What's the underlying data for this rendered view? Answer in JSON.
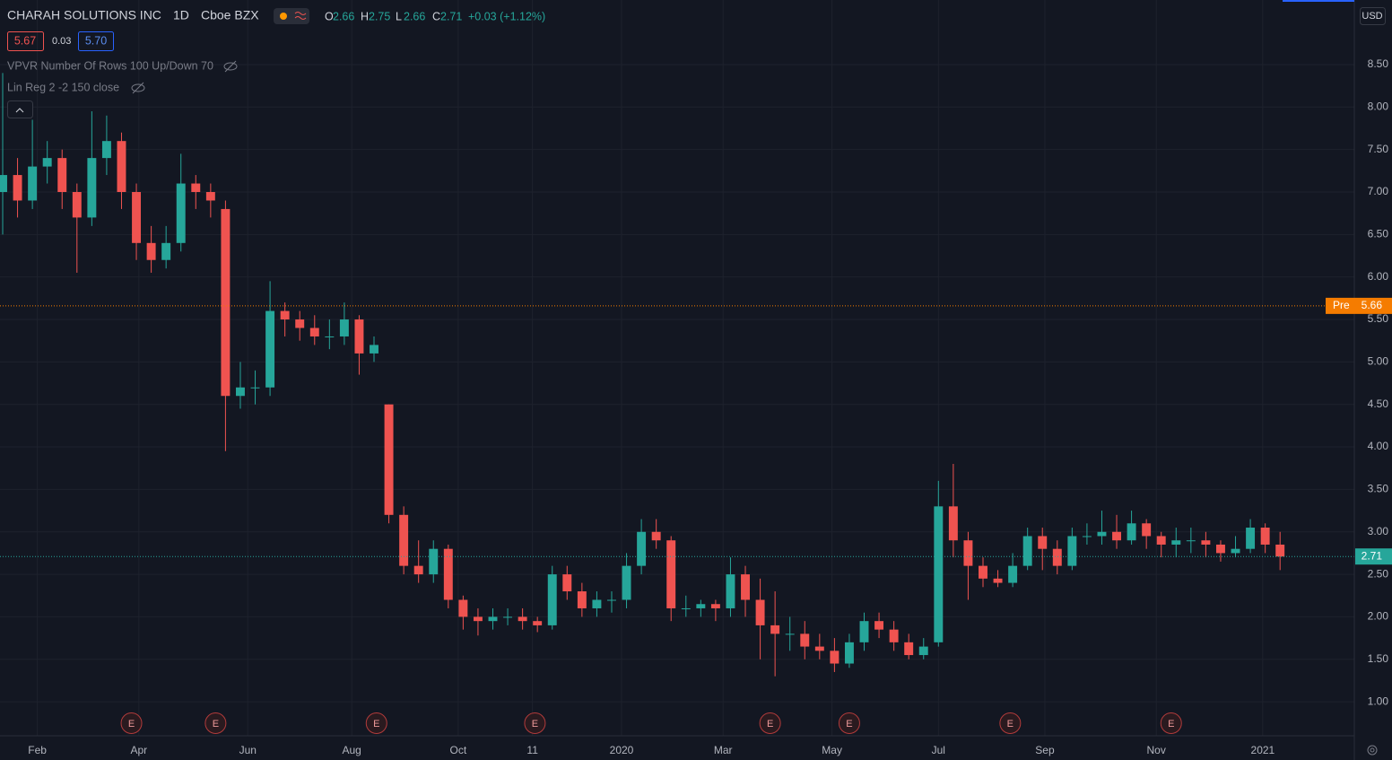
{
  "header": {
    "symbol": "CHARAH SOLUTIONS INC",
    "interval": "1D",
    "exchange": "Cboe BZX",
    "o_label": "O",
    "o": "2.66",
    "h_label": "H",
    "h": "2.75",
    "l_label": "L",
    "l": "2.66",
    "c_label": "C",
    "c": "2.71",
    "change": "+0.03 (+1.12%)",
    "bid": "5.67",
    "spread": "0.03",
    "ask": "5.70",
    "indicator_1": "VPVR Number Of Rows 100 Up/Down 70",
    "indicator_2": "Lin Reg 2 -2 150 close",
    "currency": "USD"
  },
  "chart_data": {
    "type": "candlestick",
    "up_color": "#26a69a",
    "down_color": "#ef5350",
    "x": [
      0,
      6,
      12,
      18,
      24,
      30,
      36,
      42,
      48,
      54,
      60,
      66,
      72,
      78,
      84,
      90,
      96,
      102,
      108,
      114,
      120,
      126,
      132,
      138,
      144,
      150,
      156,
      162,
      168,
      174,
      180,
      186,
      192,
      198,
      204,
      210,
      216,
      222,
      228,
      234,
      240,
      246,
      252,
      258,
      264,
      270,
      276,
      282,
      288,
      294,
      300,
      306,
      312,
      318,
      324,
      330,
      336,
      342,
      348,
      354,
      360,
      366,
      372,
      378,
      384,
      390,
      396,
      402,
      408,
      414,
      420,
      426,
      432,
      438,
      444,
      450,
      456,
      462,
      468,
      474,
      480,
      486,
      492,
      498,
      504,
      510,
      516
    ],
    "open": [
      7.0,
      7.2,
      6.9,
      7.3,
      7.4,
      7.0,
      6.7,
      7.4,
      7.6,
      7.0,
      6.4,
      6.2,
      6.4,
      7.1,
      7.0,
      6.8,
      4.6,
      4.7,
      4.7,
      5.6,
      5.5,
      5.4,
      5.3,
      5.3,
      5.5,
      5.1,
      4.5,
      3.2,
      2.6,
      2.5,
      2.8,
      2.2,
      2.0,
      1.95,
      2.0,
      2.0,
      1.95,
      1.9,
      2.5,
      2.3,
      2.1,
      2.2,
      2.2,
      2.6,
      3.0,
      2.9,
      2.1,
      2.1,
      2.15,
      2.1,
      2.5,
      2.2,
      1.9,
      1.8,
      1.8,
      1.65,
      1.6,
      1.45,
      1.7,
      1.95,
      1.85,
      1.7,
      1.55,
      1.7,
      3.3,
      2.9,
      2.6,
      2.45,
      2.4,
      2.6,
      2.95,
      2.8,
      2.6,
      2.95,
      2.95,
      3.0,
      2.9,
      3.1,
      2.95,
      2.85,
      2.9,
      2.9,
      2.85,
      2.75,
      2.8,
      3.05,
      2.85
    ],
    "high": [
      8.4,
      7.4,
      7.85,
      7.6,
      7.5,
      7.1,
      7.95,
      7.9,
      7.7,
      7.1,
      6.6,
      6.6,
      7.45,
      7.2,
      7.1,
      6.9,
      5.0,
      4.9,
      5.95,
      5.7,
      5.6,
      5.55,
      5.5,
      5.7,
      5.55,
      5.3,
      4.5,
      3.3,
      2.9,
      2.9,
      2.85,
      2.25,
      2.1,
      2.1,
      2.1,
      2.1,
      2.0,
      2.6,
      2.6,
      2.4,
      2.3,
      2.3,
      2.75,
      3.15,
      3.15,
      2.95,
      2.25,
      2.2,
      2.2,
      2.7,
      2.6,
      2.45,
      2.3,
      2.0,
      1.95,
      1.8,
      1.75,
      1.8,
      2.05,
      2.05,
      1.95,
      1.8,
      1.75,
      3.6,
      3.8,
      3.0,
      2.7,
      2.55,
      2.75,
      3.05,
      3.05,
      2.9,
      3.05,
      3.1,
      3.25,
      3.2,
      3.25,
      3.15,
      3.0,
      3.05,
      3.05,
      3.0,
      2.9,
      2.95,
      3.15,
      3.1,
      3.0
    ],
    "low": [
      6.5,
      6.7,
      6.8,
      7.1,
      6.8,
      6.05,
      6.6,
      7.2,
      6.8,
      6.2,
      6.05,
      6.1,
      6.3,
      6.8,
      6.7,
      3.95,
      4.45,
      4.5,
      4.6,
      5.3,
      5.25,
      5.2,
      5.15,
      5.2,
      4.85,
      5.0,
      3.1,
      2.5,
      2.4,
      2.4,
      2.1,
      1.85,
      1.78,
      1.85,
      1.9,
      1.85,
      1.82,
      1.85,
      2.2,
      2.0,
      2.0,
      2.05,
      2.1,
      2.5,
      2.8,
      1.95,
      2.0,
      2.0,
      1.95,
      2.0,
      2.0,
      1.5,
      1.3,
      1.6,
      1.5,
      1.5,
      1.35,
      1.4,
      1.6,
      1.75,
      1.6,
      1.5,
      1.5,
      1.65,
      2.7,
      2.2,
      2.35,
      2.35,
      2.35,
      2.55,
      2.55,
      2.5,
      2.55,
      2.85,
      2.85,
      2.8,
      2.85,
      2.8,
      2.7,
      2.7,
      2.75,
      2.7,
      2.65,
      2.7,
      2.75,
      2.75,
      2.55
    ],
    "close": [
      7.2,
      6.9,
      7.3,
      7.4,
      7.0,
      6.7,
      7.4,
      7.6,
      7.0,
      6.4,
      6.2,
      6.4,
      7.1,
      7.0,
      6.9,
      4.6,
      4.7,
      4.7,
      5.6,
      5.5,
      5.4,
      5.3,
      5.3,
      5.5,
      5.1,
      5.2,
      3.2,
      2.6,
      2.5,
      2.8,
      2.2,
      2.0,
      1.95,
      2.0,
      2.0,
      1.95,
      1.9,
      2.5,
      2.3,
      2.1,
      2.2,
      2.2,
      2.6,
      3.0,
      2.9,
      2.1,
      2.1,
      2.15,
      2.1,
      2.5,
      2.2,
      1.9,
      1.8,
      1.8,
      1.65,
      1.6,
      1.45,
      1.7,
      1.95,
      1.85,
      1.7,
      1.55,
      1.65,
      3.3,
      2.9,
      2.6,
      2.45,
      2.4,
      2.6,
      2.95,
      2.8,
      2.6,
      2.95,
      2.95,
      3.0,
      2.9,
      3.1,
      2.95,
      2.85,
      2.9,
      2.9,
      2.85,
      2.75,
      2.8,
      3.05,
      2.85,
      2.71
    ],
    "xlim": [
      0,
      546
    ],
    "xticks": [
      {
        "value": 14,
        "label": "Feb"
      },
      {
        "value": 55,
        "label": "Apr"
      },
      {
        "value": 99,
        "label": "Jun"
      },
      {
        "value": 141,
        "label": "Aug"
      },
      {
        "value": 184,
        "label": "Oct"
      },
      {
        "value": 214,
        "label": "11"
      },
      {
        "value": 250,
        "label": "2020"
      },
      {
        "value": 291,
        "label": "Mar"
      },
      {
        "value": 335,
        "label": "May"
      },
      {
        "value": 378,
        "label": "Jul"
      },
      {
        "value": 421,
        "label": "Sep"
      },
      {
        "value": 466,
        "label": "Nov"
      },
      {
        "value": 509,
        "label": "2021"
      }
    ],
    "ylim": [
      0.6,
      9.26
    ],
    "yticks": [
      {
        "value": 1,
        "label": "1.00"
      },
      {
        "value": 1.5,
        "label": "1.50"
      },
      {
        "value": 2,
        "label": "2.00"
      },
      {
        "value": 2.5,
        "label": "2.50"
      },
      {
        "value": 3,
        "label": "3.00"
      },
      {
        "value": 3.5,
        "label": "3.50"
      },
      {
        "value": 4,
        "label": "4.00"
      },
      {
        "value": 4.5,
        "label": "4.50"
      },
      {
        "value": 5,
        "label": "5.00"
      },
      {
        "value": 5.5,
        "label": "5.50"
      },
      {
        "value": 6,
        "label": "6.00"
      },
      {
        "value": 6.5,
        "label": "6.50"
      },
      {
        "value": 7,
        "label": "7.00"
      },
      {
        "value": 7.5,
        "label": "7.50"
      },
      {
        "value": 8,
        "label": "8.00"
      },
      {
        "value": 8.5,
        "label": "8.50"
      }
    ],
    "grid": true,
    "pre_market": {
      "label": "Pre",
      "value": 5.66,
      "color": "#f57c00"
    },
    "last_price": {
      "value": 2.71,
      "color": "#26a69a"
    },
    "earnings": {
      "label": "E",
      "x": [
        52,
        86,
        151,
        215,
        310,
        342,
        407,
        472
      ]
    }
  }
}
